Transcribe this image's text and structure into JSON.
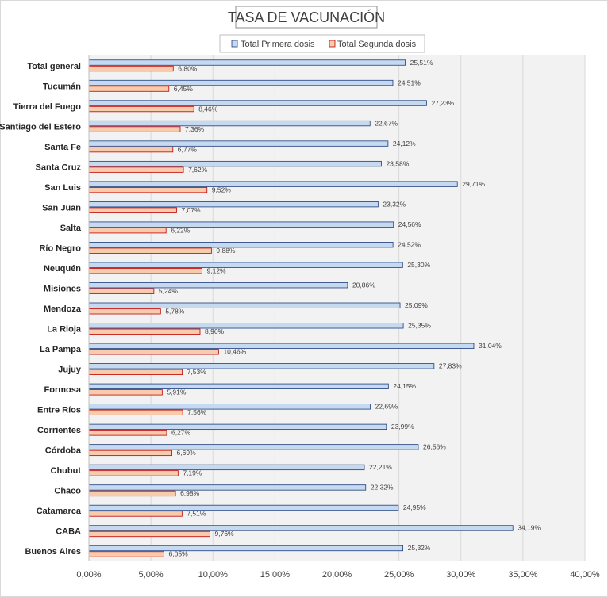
{
  "chart_data": {
    "type": "bar",
    "orientation": "horizontal",
    "title": "TASA DE VACUNACIÓN",
    "categories": [
      "Total general",
      "Tucumán",
      "Tierra del Fuego",
      "Santiago del Estero",
      "Santa Fe",
      "Santa Cruz",
      "San Luis",
      "San Juan",
      "Salta",
      "Río Negro",
      "Neuquén",
      "Misiones",
      "Mendoza",
      "La Rioja",
      "La Pampa",
      "Jujuy",
      "Formosa",
      "Entre Ríos",
      "Corrientes",
      "Córdoba",
      "Chubut",
      "Chaco",
      "Catamarca",
      "CABA",
      "Buenos Aires"
    ],
    "series": [
      {
        "name": "Total Primera dosis",
        "color": "#c5d9f1",
        "border": "#1f3d7a",
        "values": [
          25.51,
          24.51,
          27.23,
          22.67,
          24.12,
          23.58,
          29.71,
          23.32,
          24.56,
          24.52,
          25.3,
          20.86,
          25.09,
          25.35,
          31.04,
          27.83,
          24.15,
          22.69,
          23.99,
          26.56,
          22.21,
          22.32,
          24.95,
          34.19,
          25.32
        ],
        "labels": [
          "25,51%",
          "24,51%",
          "27,23%",
          "22,67%",
          "24,12%",
          "23,58%",
          "29,71%",
          "23,32%",
          "24,56%",
          "24,52%",
          "25,30%",
          "20,86%",
          "25,09%",
          "25,35%",
          "31,04%",
          "27,83%",
          "24,15%",
          "22,69%",
          "23,99%",
          "26,56%",
          "22,21%",
          "22,32%",
          "24,95%",
          "34,19%",
          "25,32%"
        ]
      },
      {
        "name": "Total Segunda dosis",
        "color": "#f8cbad",
        "border": "#c00000",
        "values": [
          6.8,
          6.45,
          8.46,
          7.36,
          6.77,
          7.62,
          9.52,
          7.07,
          6.22,
          9.88,
          9.12,
          5.24,
          5.78,
          8.96,
          10.46,
          7.53,
          5.91,
          7.56,
          6.27,
          6.69,
          7.19,
          6.98,
          7.51,
          9.76,
          6.05
        ],
        "labels": [
          "6,80%",
          "6,45%",
          "8,46%",
          "7,36%",
          "6,77%",
          "7,62%",
          "9,52%",
          "7,07%",
          "6,22%",
          "9,88%",
          "9,12%",
          "5,24%",
          "5,78%",
          "8,96%",
          "10,46%",
          "7,53%",
          "5,91%",
          "7,56%",
          "6,27%",
          "6,69%",
          "7,19%",
          "6,98%",
          "7,51%",
          "9,76%",
          "6,05%"
        ]
      }
    ],
    "xlim": [
      0,
      40
    ],
    "x_ticks": [
      "0,00%",
      "5,00%",
      "10,00%",
      "15,00%",
      "20,00%",
      "25,00%",
      "30,00%",
      "35,00%",
      "40,00%"
    ],
    "grid": true,
    "legend_position": "top",
    "plot_background": "#f2f2f2"
  }
}
